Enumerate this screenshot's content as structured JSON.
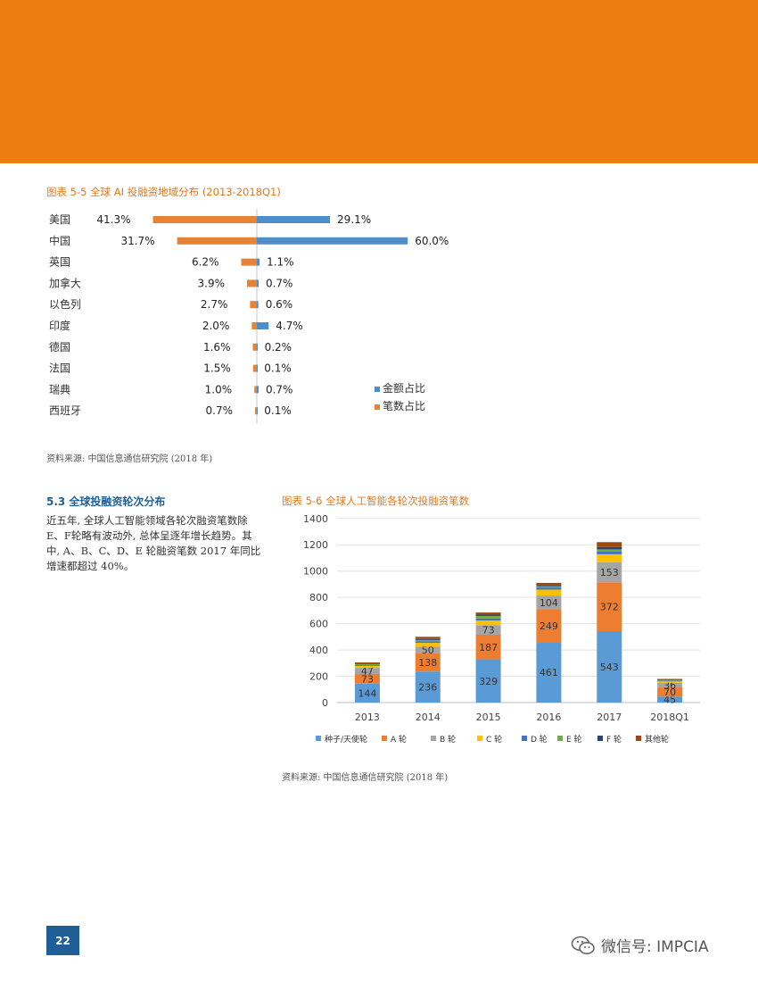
{
  "chart1": {
    "title": "图表 5-5 全球 AI 投融资地域分布 (2013-2018Q1)",
    "source": "资料来源: 中国信息通信研究院 (2018 年)",
    "chart_data": {
      "type": "bar",
      "orientation": "diverging-horizontal",
      "categories": [
        "美国",
        "中国",
        "英国",
        "加拿大",
        "以色列",
        "印度",
        "德国",
        "法国",
        "瑞典",
        "西班牙"
      ],
      "series": [
        {
          "name": "金额占比",
          "values": [
            29.1,
            60.0,
            1.1,
            0.7,
            0.6,
            4.7,
            0.2,
            0.1,
            0.7,
            0.1
          ],
          "labels": [
            "29.1%",
            "60.0%",
            "1.1%",
            "0.7%",
            "0.6%",
            "4.7%",
            "0.2%",
            "0.1%",
            "0.7%",
            "0.1%"
          ],
          "color": "#4E8FCB",
          "side": "right"
        },
        {
          "name": "笔数占比",
          "values": [
            41.3,
            31.7,
            6.2,
            3.9,
            2.7,
            2.0,
            1.6,
            1.5,
            1.0,
            0.7
          ],
          "labels": [
            "41.3%",
            "31.7%",
            "6.2%",
            "3.9%",
            "2.7%",
            "2.0%",
            "1.6%",
            "1.5%",
            "1.0%",
            "0.7%"
          ],
          "color": "#E58336",
          "side": "left"
        }
      ],
      "legend_position": "bottom-right"
    }
  },
  "section": {
    "title": "5.3 全球投融资轮次分布",
    "body": "近五年, 全球人工智能领域各轮次融资笔数除E、F轮略有波动外, 总体呈逐年增长趋势。其中, A、B、C、D、E 轮融资笔数 2017 年同比增速都超过 40%。"
  },
  "chart2": {
    "title": "图表 5-6 全球人工智能各轮次投融资笔数",
    "source": "资料来源: 中国信息通信研究院 (2018 年)",
    "chart_data": {
      "type": "bar",
      "stacked": true,
      "categories": [
        "2013",
        "2014",
        "2015",
        "2016",
        "2017",
        "2018Q1"
      ],
      "ylim": [
        0,
        1400
      ],
      "yticks": [
        0,
        200,
        400,
        600,
        800,
        1000,
        1200,
        1400
      ],
      "grid": true,
      "series": [
        {
          "name": "种子/天使轮",
          "color": "#5B9BD5",
          "values": [
            144,
            236,
            329,
            461,
            543,
            45
          ]
        },
        {
          "name": "A 轮",
          "color": "#ED7D31",
          "values": [
            73,
            138,
            187,
            249,
            372,
            70
          ]
        },
        {
          "name": "B 轮",
          "color": "#A5A5A5",
          "values": [
            47,
            50,
            73,
            104,
            153,
            36
          ]
        },
        {
          "name": "C 轮",
          "color": "#FFC000",
          "values": [
            15,
            30,
            35,
            45,
            60,
            10
          ]
        },
        {
          "name": "D 轮",
          "color": "#4472C4",
          "values": [
            6,
            12,
            15,
            16,
            22,
            4
          ]
        },
        {
          "name": "E 轮",
          "color": "#70AD47",
          "values": [
            7,
            10,
            20,
            10,
            15,
            3
          ]
        },
        {
          "name": "F 轮",
          "color": "#264478",
          "values": [
            4,
            8,
            10,
            10,
            18,
            3
          ]
        },
        {
          "name": "其他轮",
          "color": "#9E480E",
          "values": [
            9,
            16,
            16,
            15,
            37,
            9
          ]
        }
      ],
      "labeled_series": [
        0,
        1,
        2
      ],
      "legend_position": "bottom"
    }
  },
  "page": {
    "number": "22",
    "watermark": "微信号: IMPCIA"
  }
}
